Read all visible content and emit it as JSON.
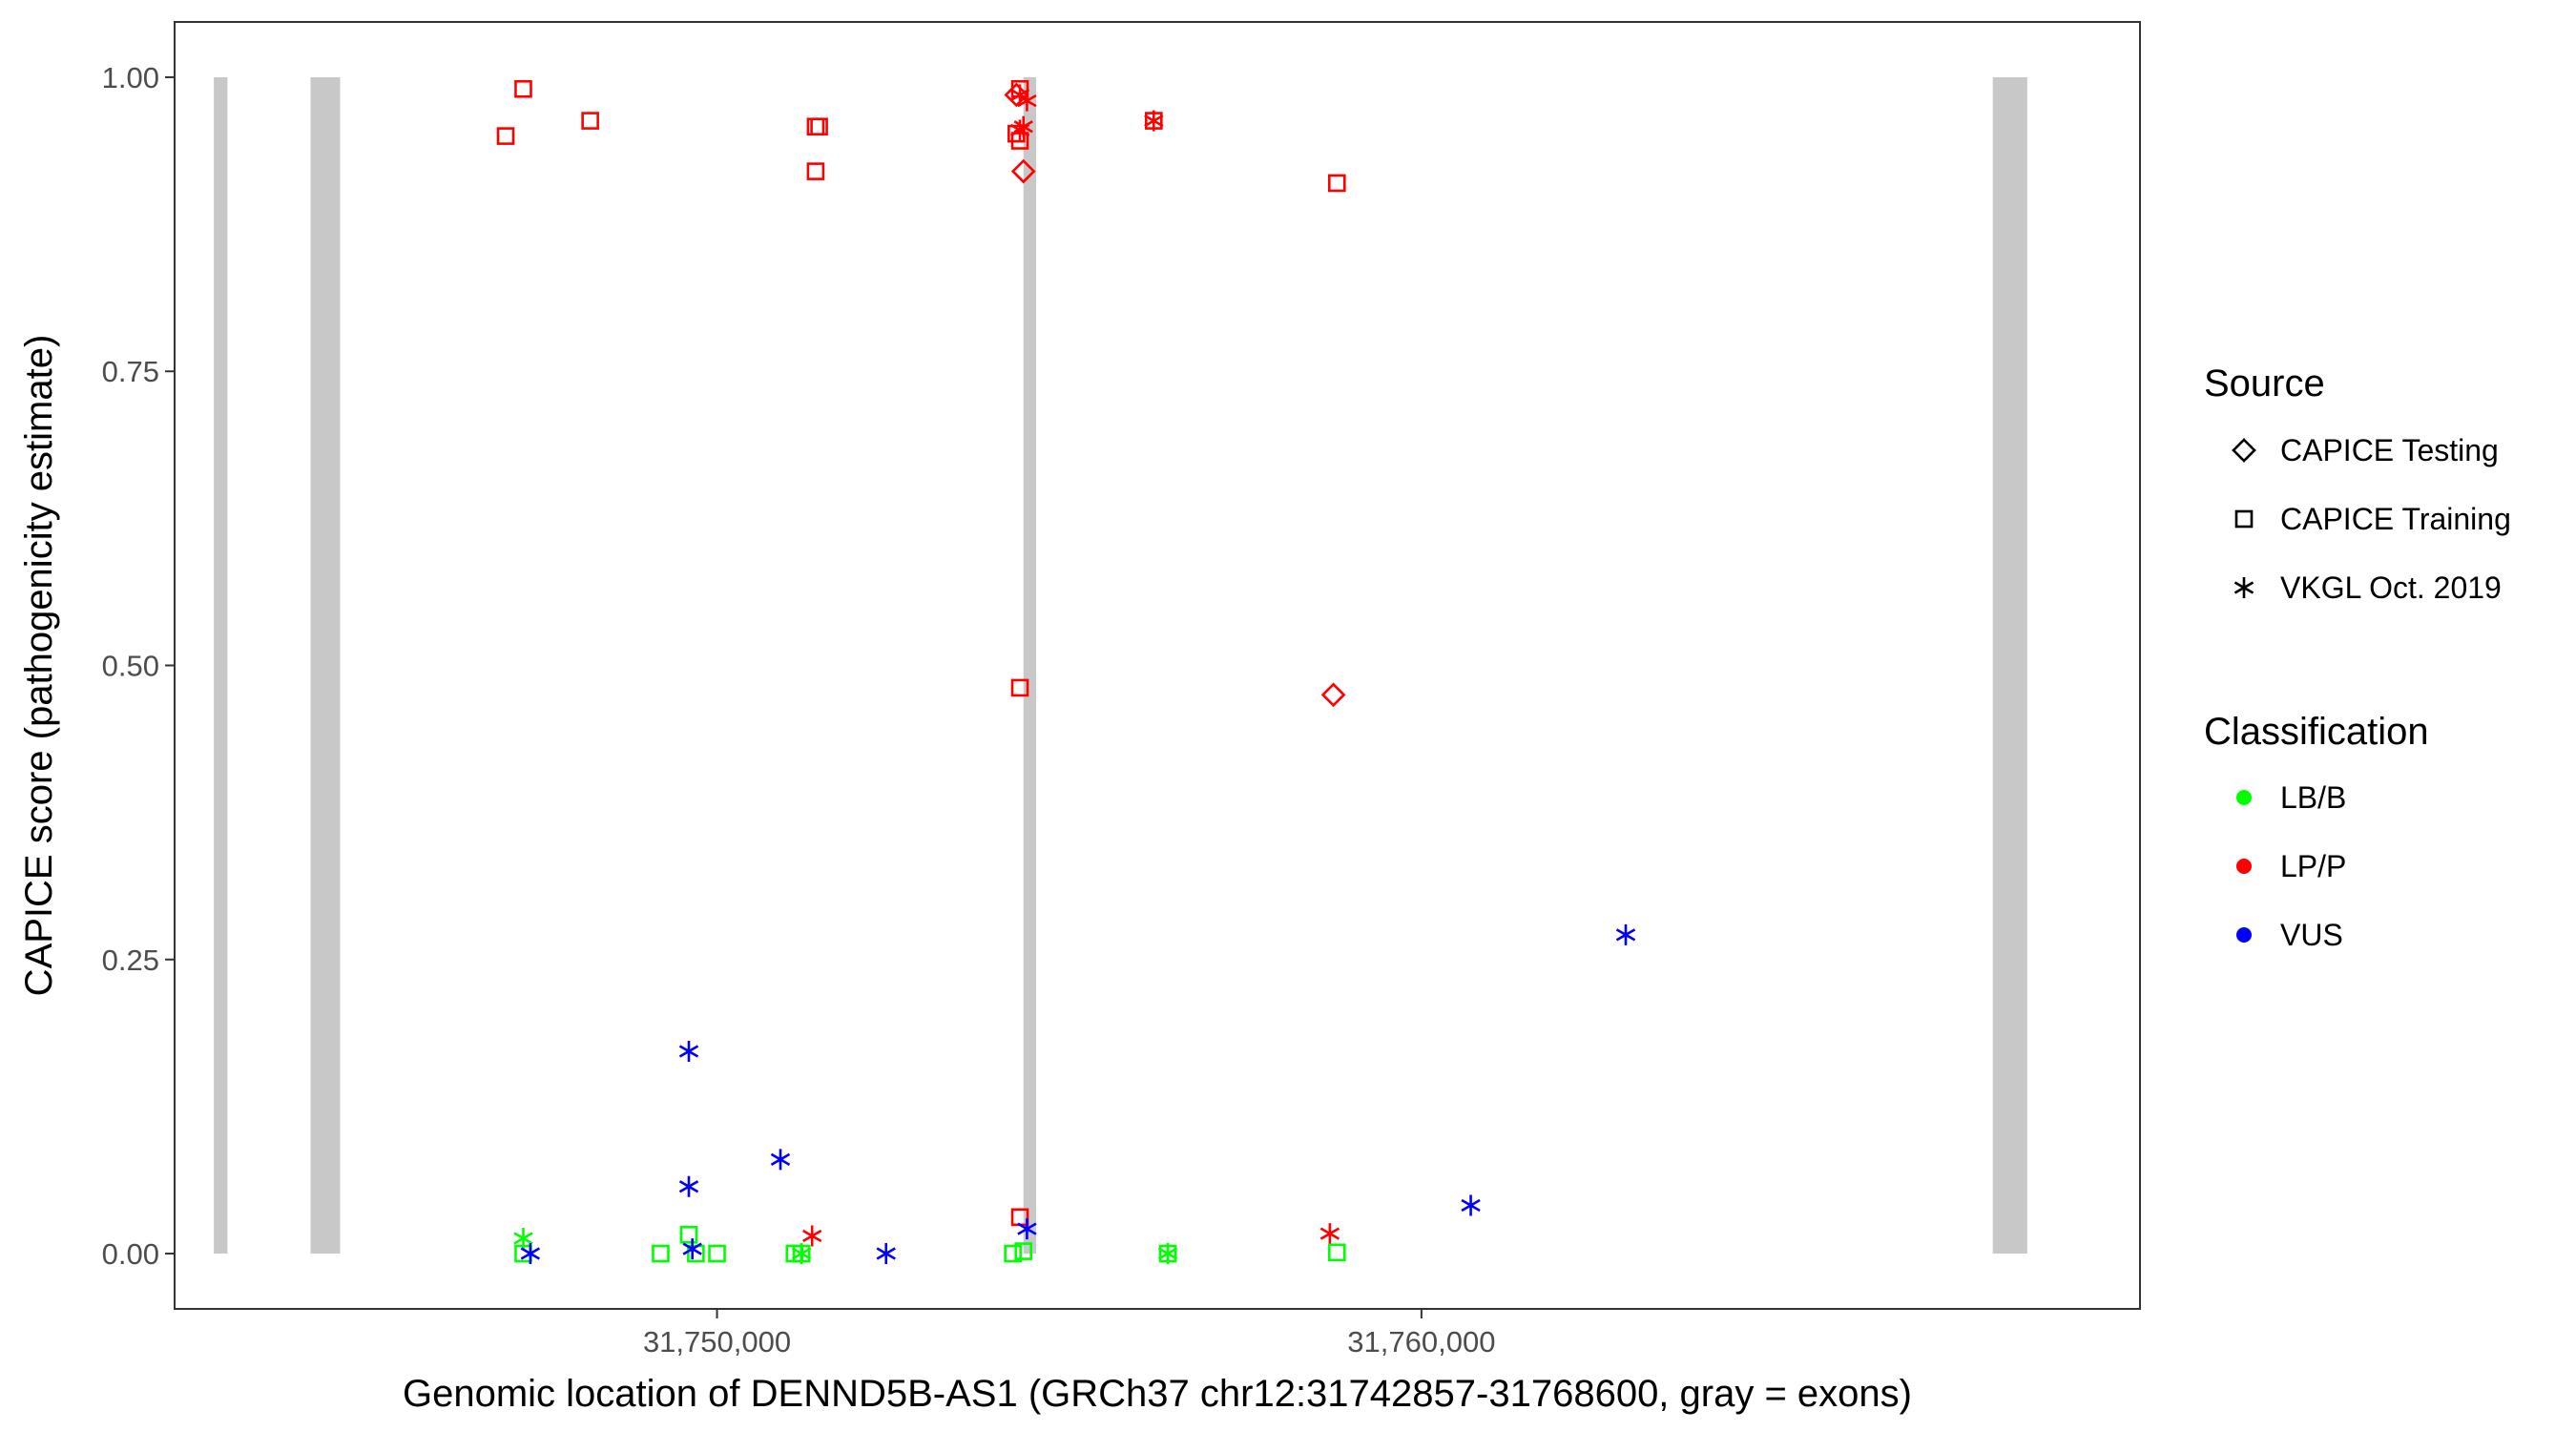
{
  "chart_data": {
    "type": "scatter",
    "xlabel": "Genomic location of DENND5B-AS1 (GRCh37 chr12:31742857-31768600, gray = exons)",
    "ylabel": "CAPICE score (pathogenicity estimate)",
    "xlim": [
      31742300,
      31770200
    ],
    "ylim": [
      -0.047,
      1.047
    ],
    "x_ticks": [
      31750000,
      31760000
    ],
    "x_tick_labels": [
      "31,750,000",
      "31,760,000"
    ],
    "y_ticks": [
      0,
      0.25,
      0.5,
      0.75,
      1.0
    ],
    "y_tick_labels": [
      "0.00",
      "0.25",
      "0.50",
      "0.75",
      "1.00"
    ],
    "grid": false,
    "exons": [
      {
        "start": 31742857,
        "end": 31743050
      },
      {
        "start": 31744230,
        "end": 31744650
      },
      {
        "start": 31754350,
        "end": 31754530
      },
      {
        "start": 31768110,
        "end": 31768600
      }
    ],
    "legends": [
      {
        "title": "Source",
        "entries": [
          {
            "label": "CAPICE Testing",
            "shape": "diamond"
          },
          {
            "label": "CAPICE Training",
            "shape": "square"
          },
          {
            "label": "VKGL Oct. 2019",
            "shape": "asterisk"
          }
        ]
      },
      {
        "title": "Classification",
        "entries": [
          {
            "label": "LB/B",
            "color": "#00ff00"
          },
          {
            "label": "LP/P",
            "color": "#ff0000"
          },
          {
            "label": "VUS",
            "color": "#0000ff"
          }
        ]
      }
    ],
    "colors": {
      "LB/B": "#00ff00",
      "LP/P": "#ff0000",
      "VUS": "#0000ff"
    },
    "points": [
      {
        "x": 31747000,
        "y": 0.95,
        "source": "CAPICE Training",
        "class": "LP/P"
      },
      {
        "x": 31747250,
        "y": 0.99,
        "source": "CAPICE Training",
        "class": "LP/P"
      },
      {
        "x": 31748200,
        "y": 0.963,
        "source": "CAPICE Training",
        "class": "LP/P"
      },
      {
        "x": 31751400,
        "y": 0.958,
        "source": "CAPICE Training",
        "class": "LP/P"
      },
      {
        "x": 31751450,
        "y": 0.958,
        "source": "CAPICE Training",
        "class": "LP/P"
      },
      {
        "x": 31751400,
        "y": 0.92,
        "source": "CAPICE Training",
        "class": "LP/P"
      },
      {
        "x": 31754300,
        "y": 0.99,
        "source": "CAPICE Training",
        "class": "LP/P"
      },
      {
        "x": 31754250,
        "y": 0.952,
        "source": "CAPICE Training",
        "class": "LP/P"
      },
      {
        "x": 31754300,
        "y": 0.946,
        "source": "CAPICE Training",
        "class": "LP/P"
      },
      {
        "x": 31756200,
        "y": 0.963,
        "source": "CAPICE Training",
        "class": "LP/P"
      },
      {
        "x": 31758800,
        "y": 0.91,
        "source": "CAPICE Training",
        "class": "LP/P"
      },
      {
        "x": 31754300,
        "y": 0.481,
        "source": "CAPICE Training",
        "class": "LP/P"
      },
      {
        "x": 31754300,
        "y": 0.031,
        "source": "CAPICE Training",
        "class": "LP/P"
      },
      {
        "x": 31754250,
        "y": 0.985,
        "source": "CAPICE Testing",
        "class": "LP/P"
      },
      {
        "x": 31754350,
        "y": 0.92,
        "source": "CAPICE Testing",
        "class": "LP/P"
      },
      {
        "x": 31758750,
        "y": 0.475,
        "source": "CAPICE Testing",
        "class": "LP/P"
      },
      {
        "x": 31754300,
        "y": 0.985,
        "source": "VKGL Oct. 2019",
        "class": "LP/P"
      },
      {
        "x": 31754400,
        "y": 0.98,
        "source": "VKGL Oct. 2019",
        "class": "LP/P"
      },
      {
        "x": 31754350,
        "y": 0.958,
        "source": "VKGL Oct. 2019",
        "class": "LP/P"
      },
      {
        "x": 31754300,
        "y": 0.955,
        "source": "VKGL Oct. 2019",
        "class": "LP/P"
      },
      {
        "x": 31756200,
        "y": 0.963,
        "source": "VKGL Oct. 2019",
        "class": "LP/P"
      },
      {
        "x": 31751350,
        "y": 0.015,
        "source": "VKGL Oct. 2019",
        "class": "LP/P"
      },
      {
        "x": 31758700,
        "y": 0.017,
        "source": "VKGL Oct. 2019",
        "class": "LP/P"
      },
      {
        "x": 31747250,
        "y": 0.0,
        "source": "CAPICE Training",
        "class": "LB/B"
      },
      {
        "x": 31749200,
        "y": 0.0,
        "source": "CAPICE Training",
        "class": "LB/B"
      },
      {
        "x": 31749600,
        "y": 0.016,
        "source": "CAPICE Training",
        "class": "LB/B"
      },
      {
        "x": 31749700,
        "y": 0.0,
        "source": "CAPICE Training",
        "class": "LB/B"
      },
      {
        "x": 31750000,
        "y": 0.0,
        "source": "CAPICE Training",
        "class": "LB/B"
      },
      {
        "x": 31751100,
        "y": 0.0,
        "source": "CAPICE Training",
        "class": "LB/B"
      },
      {
        "x": 31751200,
        "y": 0.0,
        "source": "CAPICE Training",
        "class": "LB/B"
      },
      {
        "x": 31754200,
        "y": 0.0,
        "source": "CAPICE Training",
        "class": "LB/B"
      },
      {
        "x": 31754350,
        "y": 0.002,
        "source": "CAPICE Training",
        "class": "LB/B"
      },
      {
        "x": 31756400,
        "y": 0.0,
        "source": "CAPICE Training",
        "class": "LB/B"
      },
      {
        "x": 31758800,
        "y": 0.001,
        "source": "CAPICE Training",
        "class": "LB/B"
      },
      {
        "x": 31747250,
        "y": 0.013,
        "source": "VKGL Oct. 2019",
        "class": "LB/B"
      },
      {
        "x": 31751200,
        "y": 0.0,
        "source": "VKGL Oct. 2019",
        "class": "LB/B"
      },
      {
        "x": 31756400,
        "y": 0.0,
        "source": "VKGL Oct. 2019",
        "class": "LB/B"
      },
      {
        "x": 31747350,
        "y": 0.0,
        "source": "VKGL Oct. 2019",
        "class": "VUS"
      },
      {
        "x": 31749600,
        "y": 0.172,
        "source": "VKGL Oct. 2019",
        "class": "VUS"
      },
      {
        "x": 31749600,
        "y": 0.057,
        "source": "VKGL Oct. 2019",
        "class": "VUS"
      },
      {
        "x": 31749650,
        "y": 0.004,
        "source": "VKGL Oct. 2019",
        "class": "VUS"
      },
      {
        "x": 31750900,
        "y": 0.08,
        "source": "VKGL Oct. 2019",
        "class": "VUS"
      },
      {
        "x": 31752400,
        "y": 0.0,
        "source": "VKGL Oct. 2019",
        "class": "VUS"
      },
      {
        "x": 31754400,
        "y": 0.021,
        "source": "VKGL Oct. 2019",
        "class": "VUS"
      },
      {
        "x": 31760700,
        "y": 0.041,
        "source": "VKGL Oct. 2019",
        "class": "VUS"
      },
      {
        "x": 31762900,
        "y": 0.271,
        "source": "VKGL Oct. 2019",
        "class": "VUS"
      }
    ]
  }
}
